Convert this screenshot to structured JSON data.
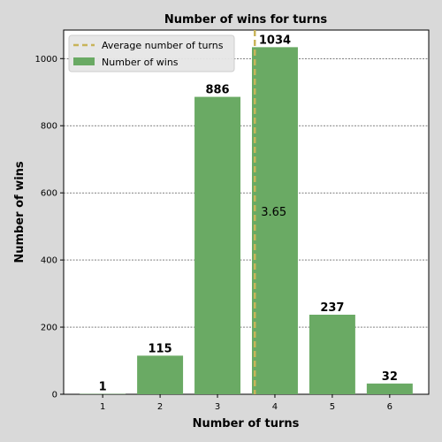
{
  "chart_data": {
    "type": "bar",
    "title": "Number of wins for turns",
    "xlabel": "Number of turns",
    "ylabel": "Number of wins",
    "categories": [
      "1",
      "2",
      "3",
      "4",
      "5",
      "6"
    ],
    "x": [
      1,
      2,
      3,
      4,
      5,
      6
    ],
    "series": [
      {
        "name": "Number of wins",
        "values": [
          1,
          115,
          886,
          1034,
          237,
          32
        ],
        "color": "#6aaa64"
      }
    ],
    "average": {
      "name": "Average number of turns",
      "value": 3.65,
      "label": "3.65",
      "color": "#c8b45a"
    },
    "xlim": [
      0.32,
      6.68
    ],
    "ylim": [
      0,
      1085
    ],
    "yticks": [
      0,
      200,
      400,
      600,
      800,
      1000
    ],
    "grid": "horizontal dashed",
    "legend": "top-left"
  }
}
